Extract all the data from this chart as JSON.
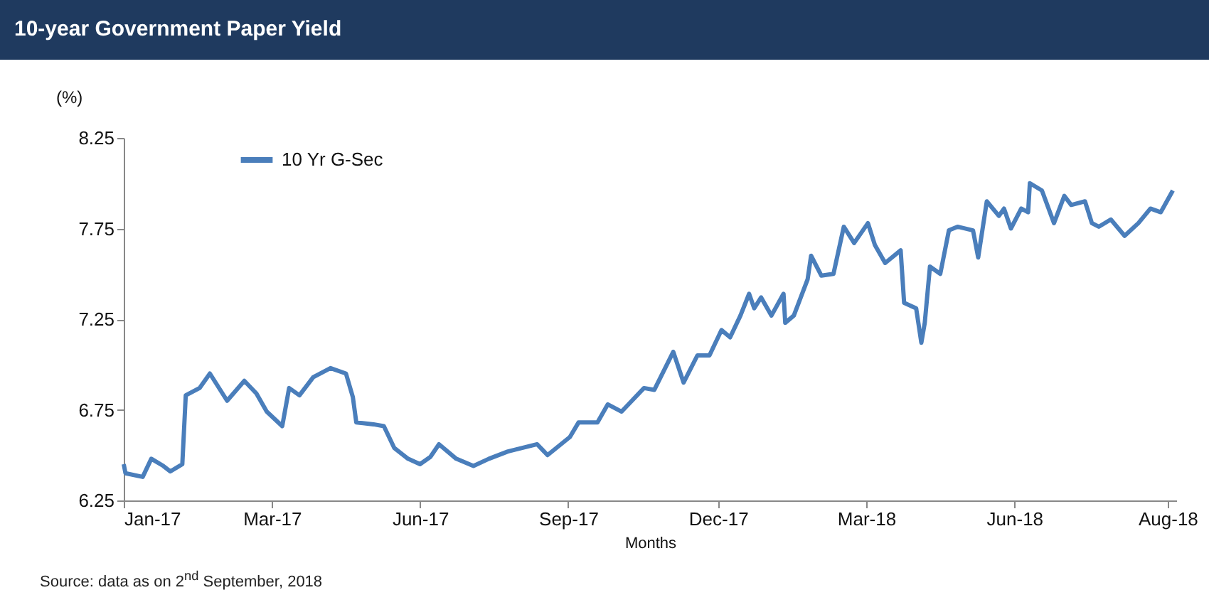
{
  "chart_data": {
    "type": "line",
    "title": "10-year Government Paper Yield",
    "xlabel": "Months",
    "ylabel": "(%)",
    "annotations": [
      "Source: data as on 2$^{nd}$ September, 2018"
    ],
    "x": [
      "2017-01-01",
      "2017-01-02",
      "2017-01-12",
      "2017-01-17",
      "2017-01-24",
      "2017-01-28",
      "2017-02-04",
      "2017-02-06",
      "2017-02-14",
      "2017-02-20",
      "2017-03-02",
      "2017-03-12",
      "2017-03-19",
      "2017-03-25",
      "2017-04-03",
      "2017-04-07",
      "2017-04-13",
      "2017-04-21",
      "2017-05-01",
      "2017-05-10",
      "2017-05-14",
      "2017-05-16",
      "2017-05-26",
      "2017-06-01",
      "2017-06-07",
      "2017-06-15",
      "2017-06-22",
      "2017-06-28",
      "2017-07-03",
      "2017-07-13",
      "2017-07-23",
      "2017-08-01",
      "2017-08-12",
      "2017-08-29",
      "2017-09-04",
      "2017-09-17",
      "2017-09-22",
      "2017-10-03",
      "2017-10-09",
      "2017-10-17",
      "2017-10-30",
      "2017-11-05",
      "2017-11-16",
      "2017-11-22",
      "2017-11-30",
      "2017-12-07",
      "2017-12-14",
      "2017-12-19",
      "2017-12-25",
      "2017-12-30",
      "2018-01-02",
      "2018-01-06",
      "2018-01-12",
      "2018-01-19",
      "2018-01-20",
      "2018-01-25",
      "2018-02-02",
      "2018-02-04",
      "2018-02-10",
      "2018-02-17",
      "2018-02-23",
      "2018-03-01",
      "2018-03-09",
      "2018-03-13",
      "2018-03-19",
      "2018-03-28",
      "2018-03-30",
      "2018-04-06",
      "2018-04-09",
      "2018-04-11",
      "2018-04-14",
      "2018-04-20",
      "2018-04-25",
      "2018-04-30",
      "2018-05-09",
      "2018-05-12",
      "2018-05-17",
      "2018-05-24",
      "2018-05-27",
      "2018-05-31",
      "2018-06-06",
      "2018-06-10",
      "2018-06-11",
      "2018-06-18",
      "2018-06-25",
      "2018-07-01",
      "2018-07-05",
      "2018-07-13",
      "2018-07-17",
      "2018-07-21",
      "2018-07-28",
      "2018-08-05",
      "2018-08-13",
      "2018-08-20",
      "2018-08-26",
      "2018-09-02"
    ],
    "series": [
      {
        "name": "10 Yr G-Sec",
        "color": "#4a7ebb",
        "values": [
          6.45,
          6.4,
          6.38,
          6.48,
          6.44,
          6.41,
          6.45,
          6.83,
          6.87,
          6.95,
          6.8,
          6.91,
          6.84,
          6.74,
          6.66,
          6.87,
          6.83,
          6.93,
          6.98,
          6.95,
          6.82,
          6.68,
          6.67,
          6.66,
          6.54,
          6.48,
          6.45,
          6.49,
          6.56,
          6.48,
          6.44,
          6.48,
          6.52,
          6.56,
          6.5,
          6.6,
          6.68,
          6.68,
          6.78,
          6.74,
          6.87,
          6.86,
          7.07,
          6.9,
          7.05,
          7.05,
          7.19,
          7.15,
          7.27,
          7.39,
          7.31,
          7.37,
          7.27,
          7.39,
          7.23,
          7.27,
          7.47,
          7.6,
          7.49,
          7.5,
          7.76,
          7.67,
          7.78,
          7.66,
          7.56,
          7.63,
          7.34,
          7.31,
          7.12,
          7.23,
          7.54,
          7.5,
          7.74,
          7.76,
          7.74,
          7.59,
          7.9,
          7.82,
          7.86,
          7.75,
          7.86,
          7.84,
          8.0,
          7.96,
          7.78,
          7.93,
          7.88,
          7.9,
          7.78,
          7.76,
          7.8,
          7.71,
          7.78,
          7.86,
          7.84,
          7.96
        ]
      }
    ],
    "xlim": [
      "2017-01-01",
      "2018-09-04"
    ],
    "xticks": [
      {
        "value": "2017-01-01",
        "label": "Jan-17"
      },
      {
        "value": "2017-03-28",
        "label": "Mar-17"
      },
      {
        "value": "2017-06-22",
        "label": "Jun-17"
      },
      {
        "value": "2017-09-16",
        "label": "Sep-17"
      },
      {
        "value": "2017-12-12",
        "label": "Dec-17"
      },
      {
        "value": "2018-03-08",
        "label": "Mar-18"
      },
      {
        "value": "2018-06-02",
        "label": "Jun-18"
      },
      {
        "value": "2018-08-30",
        "label": "Aug-18"
      }
    ],
    "ylim": [
      6.25,
      8.25
    ],
    "yticks": [
      6.25,
      6.75,
      7.25,
      7.75,
      8.25
    ],
    "legend": "top left",
    "grid": false,
    "marker": "none",
    "line_style": "solid"
  }
}
